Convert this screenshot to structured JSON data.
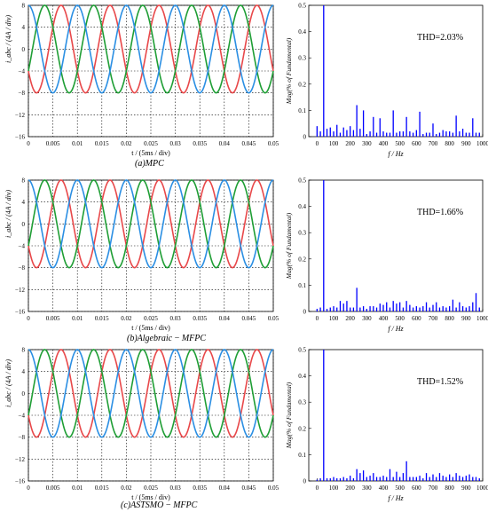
{
  "colors": {
    "phase_a": "#e8484a",
    "phase_b": "#1f9e35",
    "phase_c": "#2b8fe3",
    "spectrum": "#0000ff",
    "grid": "#000000"
  },
  "panels": [
    {
      "caption": "(a)MPC",
      "thd_label": "THD=2.03%"
    },
    {
      "caption": "(b)Algebraic − MFPC",
      "thd_label": "THD=1.66%"
    },
    {
      "caption": "(c)ASTSMO − MFPC",
      "thd_label": "THD=1.52%"
    }
  ],
  "chart_data": [
    {
      "type": "line",
      "title": "",
      "xlabel": "t / (5ms / div)",
      "ylabel": "i_abc / (4A / div)",
      "xlim": [
        0,
        0.05
      ],
      "ylim": [
        -16,
        8
      ],
      "grid": true,
      "xticks": [
        "0",
        "0.005",
        "0.01",
        "0.015",
        "0.02",
        "0.025",
        "0.03",
        "0.035",
        "0.04",
        "0.045",
        "0.05"
      ],
      "yticks": [
        "8",
        "4",
        "0",
        "−4",
        "−8",
        "−12",
        "−16"
      ],
      "amplitude": 8,
      "frequency_hz": 100,
      "series": [
        {
          "phase_deg": 210,
          "color_key": "phase_a"
        },
        {
          "phase_deg": 330,
          "color_key": "phase_b"
        },
        {
          "phase_deg": 90,
          "color_key": "phase_c"
        }
      ]
    },
    {
      "type": "bar",
      "title": "",
      "xlabel": "f / Hz",
      "ylabel": "Mag(% of Fundamental)",
      "xlim": [
        -50,
        1000
      ],
      "ylim": [
        0,
        0.5
      ],
      "grid": false,
      "annotation": "THD=2.03%",
      "xticks": [
        "0",
        "100",
        "200",
        "300",
        "400",
        "500",
        "600",
        "700",
        "800",
        "900",
        "1000"
      ],
      "yticks": [
        "0",
        "0.1",
        "0.2",
        "0.3",
        "0.4",
        "0.5"
      ],
      "x": [
        0,
        20,
        40,
        60,
        80,
        100,
        120,
        140,
        160,
        180,
        200,
        220,
        240,
        260,
        280,
        300,
        320,
        340,
        360,
        380,
        400,
        420,
        440,
        460,
        480,
        500,
        520,
        540,
        560,
        580,
        600,
        620,
        640,
        660,
        680,
        700,
        720,
        740,
        760,
        780,
        800,
        820,
        840,
        860,
        880,
        900,
        920,
        940,
        960,
        980
      ],
      "values": [
        0.04,
        0.02,
        0.5,
        0.03,
        0.035,
        0.02,
        0.045,
        0.015,
        0.035,
        0.025,
        0.04,
        0.025,
        0.12,
        0.03,
        0.1,
        0.01,
        0.02,
        0.075,
        0.015,
        0.07,
        0.02,
        0.015,
        0.015,
        0.1,
        0.015,
        0.02,
        0.02,
        0.075,
        0.02,
        0.015,
        0.025,
        0.095,
        0.01,
        0.015,
        0.015,
        0.05,
        0.01,
        0.015,
        0.025,
        0.02,
        0.02,
        0.015,
        0.08,
        0.02,
        0.03,
        0.015,
        0.015,
        0.07,
        0.015,
        0.015
      ]
    },
    {
      "type": "line",
      "title": "",
      "xlabel": "t / (5ms / div)",
      "ylabel": "i_abc / (4A / div)",
      "xlim": [
        0,
        0.05
      ],
      "ylim": [
        -16,
        8
      ],
      "grid": true,
      "xticks": [
        "0",
        "0.005",
        "0.01",
        "0.015",
        "0.02",
        "0.025",
        "0.03",
        "0.035",
        "0.04",
        "0.045",
        "0.05"
      ],
      "yticks": [
        "8",
        "4",
        "0",
        "−4",
        "−8",
        "−12",
        "−16"
      ],
      "amplitude": 8,
      "frequency_hz": 100,
      "series": [
        {
          "phase_deg": 210,
          "color_key": "phase_a"
        },
        {
          "phase_deg": 330,
          "color_key": "phase_b"
        },
        {
          "phase_deg": 90,
          "color_key": "phase_c"
        }
      ]
    },
    {
      "type": "bar",
      "title": "",
      "xlabel": "f / Hz",
      "ylabel": "Mag(% of Fundamental)",
      "xlim": [
        -50,
        1000
      ],
      "ylim": [
        0,
        0.5
      ],
      "grid": false,
      "annotation": "THD=1.66%",
      "xticks": [
        "0",
        "100",
        "200",
        "300",
        "400",
        "500",
        "600",
        "700",
        "800",
        "900",
        "1000"
      ],
      "yticks": [
        "0",
        "0.1",
        "0.2",
        "0.3",
        "0.4",
        "0.5"
      ],
      "x": [
        0,
        20,
        40,
        60,
        80,
        100,
        120,
        140,
        160,
        180,
        200,
        220,
        240,
        260,
        280,
        300,
        320,
        340,
        360,
        380,
        400,
        420,
        440,
        460,
        480,
        500,
        520,
        540,
        560,
        580,
        600,
        620,
        640,
        660,
        680,
        700,
        720,
        740,
        760,
        780,
        800,
        820,
        840,
        860,
        880,
        900,
        920,
        940,
        960,
        980
      ],
      "values": [
        0.01,
        0.015,
        0.5,
        0.01,
        0.015,
        0.02,
        0.015,
        0.04,
        0.03,
        0.04,
        0.015,
        0.015,
        0.09,
        0.015,
        0.02,
        0.01,
        0.02,
        0.02,
        0.015,
        0.03,
        0.025,
        0.035,
        0.015,
        0.04,
        0.03,
        0.035,
        0.015,
        0.04,
        0.025,
        0.015,
        0.02,
        0.015,
        0.02,
        0.035,
        0.015,
        0.025,
        0.035,
        0.015,
        0.02,
        0.015,
        0.02,
        0.045,
        0.015,
        0.035,
        0.02,
        0.015,
        0.02,
        0.035,
        0.07,
        0.015
      ]
    },
    {
      "type": "line",
      "title": "",
      "xlabel": "t / (5ms / div)",
      "ylabel": "i_abc / (4A / div)",
      "xlim": [
        0,
        0.05
      ],
      "ylim": [
        -16,
        8
      ],
      "grid": true,
      "xticks": [
        "0",
        "0.005",
        "0.01",
        "0.015",
        "0.02",
        "0.025",
        "0.03",
        "0.035",
        "0.04",
        "0.045",
        "0.05"
      ],
      "yticks": [
        "8",
        "4",
        "0",
        "−4",
        "−8",
        "−12",
        "−16"
      ],
      "amplitude": 8,
      "frequency_hz": 100,
      "series": [
        {
          "phase_deg": 210,
          "color_key": "phase_a"
        },
        {
          "phase_deg": 330,
          "color_key": "phase_b"
        },
        {
          "phase_deg": 90,
          "color_key": "phase_c"
        }
      ]
    },
    {
      "type": "bar",
      "title": "",
      "xlabel": "f / Hz",
      "ylabel": "Mag(% of Fundamental)",
      "xlim": [
        -50,
        1000
      ],
      "ylim": [
        0,
        0.5
      ],
      "grid": false,
      "annotation": "THD=1.52%",
      "xticks": [
        "0",
        "100",
        "200",
        "300",
        "400",
        "500",
        "600",
        "700",
        "800",
        "900",
        "1000"
      ],
      "yticks": [
        "0",
        "0.1",
        "0.2",
        "0.3",
        "0.4",
        "0.5"
      ],
      "x": [
        0,
        20,
        40,
        60,
        80,
        100,
        120,
        140,
        160,
        180,
        200,
        220,
        240,
        260,
        280,
        300,
        320,
        340,
        360,
        380,
        400,
        420,
        440,
        460,
        480,
        500,
        520,
        540,
        560,
        580,
        600,
        620,
        640,
        660,
        680,
        700,
        720,
        740,
        760,
        780,
        800,
        820,
        840,
        860,
        880,
        900,
        920,
        940,
        960,
        980
      ],
      "values": [
        0.005,
        0.01,
        0.5,
        0.01,
        0.01,
        0.015,
        0.01,
        0.01,
        0.015,
        0.01,
        0.02,
        0.01,
        0.045,
        0.03,
        0.04,
        0.015,
        0.02,
        0.03,
        0.015,
        0.015,
        0.02,
        0.015,
        0.045,
        0.015,
        0.035,
        0.015,
        0.03,
        0.075,
        0.015,
        0.015,
        0.015,
        0.02,
        0.01,
        0.03,
        0.015,
        0.025,
        0.015,
        0.03,
        0.02,
        0.015,
        0.025,
        0.015,
        0.03,
        0.02,
        0.015,
        0.02,
        0.025,
        0.015,
        0.015,
        0.01
      ]
    }
  ]
}
